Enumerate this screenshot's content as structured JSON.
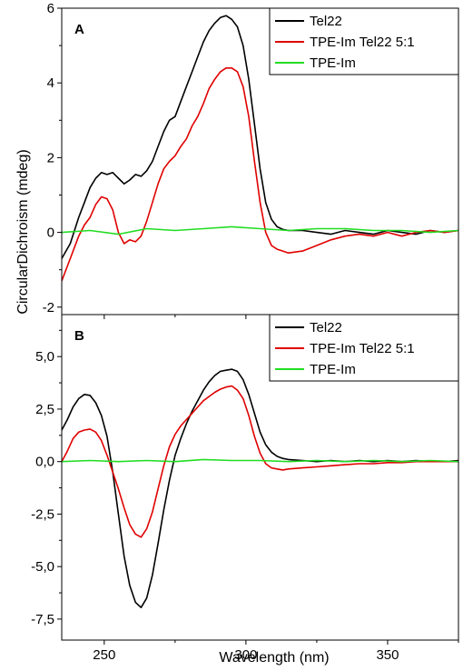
{
  "figure": {
    "xlabel": "Wavelength (nm)",
    "ylabel": "CircularDichroism (mdeg)"
  },
  "chart_data": [
    {
      "type": "line",
      "panel_label": "A",
      "xlabel": "Wavelength (nm)",
      "ylabel": "CircularDichroism (mdeg)",
      "xlim": [
        235,
        375
      ],
      "ylim": [
        -2.2,
        6
      ],
      "xticks": [
        250,
        300,
        350
      ],
      "xtick_labels": [
        "250",
        "300",
        "350"
      ],
      "yticks": [
        -2,
        0,
        2,
        4,
        6
      ],
      "ytick_labels": [
        "-2",
        "0",
        "2",
        "4",
        "6"
      ],
      "grid": false,
      "legend_position": "top-right",
      "series": [
        {
          "name": "Tel22",
          "color": "#000000",
          "x": [
            235,
            238,
            241,
            243,
            245,
            247,
            249,
            251,
            253,
            255,
            257,
            259,
            261,
            263,
            265,
            267,
            269,
            271,
            273,
            275,
            277,
            279,
            281,
            283,
            285,
            287,
            289,
            291,
            293,
            295,
            297,
            299,
            301,
            303,
            305,
            307,
            309,
            311,
            313,
            315,
            320,
            325,
            330,
            335,
            340,
            345,
            350,
            355,
            360,
            365,
            370,
            375
          ],
          "y": [
            -0.7,
            -0.3,
            0.4,
            0.8,
            1.2,
            1.45,
            1.6,
            1.55,
            1.6,
            1.45,
            1.3,
            1.4,
            1.55,
            1.5,
            1.65,
            1.9,
            2.3,
            2.7,
            3.0,
            3.1,
            3.5,
            3.9,
            4.3,
            4.7,
            5.1,
            5.4,
            5.6,
            5.75,
            5.8,
            5.7,
            5.5,
            5.0,
            4.1,
            2.9,
            1.7,
            0.8,
            0.35,
            0.15,
            0.08,
            0.05,
            0.05,
            0.0,
            -0.05,
            0.05,
            0.0,
            -0.05,
            0.05,
            0.0,
            -0.05,
            0.05,
            0.0,
            0.05
          ]
        },
        {
          "name": "TPE-Im Tel22 5:1",
          "color": "#e00000",
          "x": [
            235,
            238,
            241,
            243,
            245,
            247,
            249,
            251,
            253,
            255,
            257,
            259,
            261,
            263,
            265,
            267,
            269,
            271,
            273,
            275,
            277,
            279,
            281,
            283,
            285,
            287,
            289,
            291,
            293,
            295,
            297,
            299,
            301,
            303,
            305,
            307,
            309,
            311,
            313,
            315,
            320,
            325,
            330,
            335,
            340,
            345,
            350,
            355,
            360,
            365,
            370,
            375
          ],
          "y": [
            -1.3,
            -0.7,
            -0.1,
            0.2,
            0.4,
            0.75,
            0.95,
            0.9,
            0.6,
            0.0,
            -0.3,
            -0.2,
            -0.25,
            -0.1,
            0.3,
            0.8,
            1.3,
            1.7,
            1.9,
            2.05,
            2.3,
            2.5,
            2.85,
            3.1,
            3.45,
            3.85,
            4.1,
            4.3,
            4.4,
            4.4,
            4.3,
            3.9,
            3.1,
            1.9,
            0.8,
            0.0,
            -0.35,
            -0.45,
            -0.5,
            -0.55,
            -0.5,
            -0.35,
            -0.2,
            -0.1,
            -0.05,
            -0.1,
            0.0,
            -0.1,
            0.0,
            0.05,
            0.0,
            0.05
          ]
        },
        {
          "name": "TPE-Im",
          "color": "#22dd22",
          "x": [
            235,
            245,
            255,
            265,
            275,
            285,
            295,
            305,
            315,
            325,
            335,
            345,
            355,
            365,
            375
          ],
          "y": [
            0.0,
            0.05,
            -0.05,
            0.1,
            0.05,
            0.1,
            0.15,
            0.1,
            0.05,
            0.1,
            0.1,
            0.05,
            0.05,
            0.0,
            0.05
          ]
        }
      ]
    },
    {
      "type": "line",
      "panel_label": "B",
      "xlabel": "Wavelength (nm)",
      "ylabel": "CircularDichroism (mdeg)",
      "xlim": [
        235,
        375
      ],
      "ylim": [
        -8.5,
        7
      ],
      "xticks": [
        250,
        300,
        350
      ],
      "xtick_labels": [
        "250",
        "300",
        "350"
      ],
      "yticks": [
        -7.5,
        -5,
        -2.5,
        0,
        2.5,
        5
      ],
      "ytick_labels": [
        "-7,5",
        "-5,0",
        "-2,5",
        "0,0",
        "2,5",
        "5,0"
      ],
      "grid": false,
      "legend_position": "top-right",
      "series": [
        {
          "name": "Tel22",
          "color": "#000000",
          "x": [
            235,
            237,
            239,
            241,
            243,
            245,
            247,
            249,
            251,
            253,
            255,
            257,
            259,
            261,
            263,
            265,
            267,
            269,
            271,
            273,
            275,
            277,
            279,
            281,
            283,
            285,
            287,
            289,
            291,
            293,
            295,
            297,
            299,
            301,
            303,
            305,
            307,
            309,
            311,
            313,
            315,
            320,
            325,
            330,
            335,
            340,
            345,
            350,
            355,
            360,
            365,
            370,
            375
          ],
          "y": [
            1.5,
            2.0,
            2.6,
            3.0,
            3.2,
            3.15,
            2.8,
            2.2,
            1.2,
            -0.5,
            -2.5,
            -4.5,
            -5.9,
            -6.7,
            -6.95,
            -6.5,
            -5.4,
            -3.9,
            -2.3,
            -0.9,
            0.3,
            1.1,
            1.8,
            2.4,
            2.9,
            3.4,
            3.8,
            4.1,
            4.3,
            4.35,
            4.4,
            4.3,
            3.9,
            3.2,
            2.3,
            1.4,
            0.8,
            0.45,
            0.25,
            0.15,
            0.1,
            0.05,
            0.0,
            0.05,
            0.0,
            0.05,
            0.0,
            0.05,
            0.0,
            0.05,
            0.0,
            0.0,
            0.05
          ]
        },
        {
          "name": "TPE-Im Tel22 5:1",
          "color": "#e00000",
          "x": [
            235,
            237,
            239,
            241,
            243,
            245,
            247,
            249,
            251,
            253,
            255,
            257,
            259,
            261,
            263,
            265,
            267,
            269,
            271,
            273,
            275,
            277,
            279,
            281,
            283,
            285,
            287,
            289,
            291,
            293,
            295,
            297,
            299,
            301,
            303,
            305,
            307,
            309,
            311,
            313,
            315,
            320,
            325,
            330,
            335,
            340,
            345,
            350,
            355,
            360,
            365,
            370,
            375
          ],
          "y": [
            0.0,
            0.5,
            1.1,
            1.4,
            1.5,
            1.55,
            1.4,
            1.0,
            0.3,
            -0.5,
            -1.3,
            -2.2,
            -3.0,
            -3.45,
            -3.6,
            -3.2,
            -2.4,
            -1.3,
            -0.2,
            0.7,
            1.3,
            1.7,
            2.0,
            2.3,
            2.6,
            2.9,
            3.1,
            3.3,
            3.45,
            3.55,
            3.6,
            3.4,
            3.0,
            2.2,
            1.2,
            0.4,
            -0.1,
            -0.3,
            -0.35,
            -0.4,
            -0.35,
            -0.3,
            -0.25,
            -0.2,
            -0.15,
            -0.1,
            -0.1,
            -0.05,
            -0.05,
            0.0,
            0.0,
            0.0,
            0.0
          ]
        },
        {
          "name": "TPE-Im",
          "color": "#22dd22",
          "x": [
            235,
            245,
            255,
            265,
            275,
            285,
            295,
            305,
            315,
            325,
            335,
            345,
            355,
            365,
            375
          ],
          "y": [
            0.0,
            0.05,
            0.0,
            0.05,
            0.0,
            0.1,
            0.05,
            0.05,
            0.0,
            0.05,
            0.0,
            0.05,
            0.0,
            0.05,
            0.0
          ]
        }
      ]
    }
  ]
}
